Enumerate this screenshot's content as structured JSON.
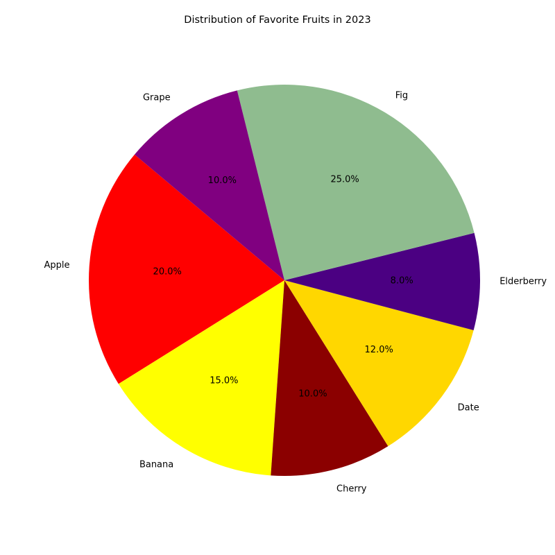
{
  "chart_data": {
    "type": "pie",
    "title": "Distribution of Favorite Fruits in 2023",
    "start_angle_deg": 140,
    "direction": "counterclockwise",
    "slices": [
      {
        "label": "Apple",
        "value": 20.0,
        "pct_label": "20.0%",
        "color": "#ff0000"
      },
      {
        "label": "Banana",
        "value": 15.0,
        "pct_label": "15.0%",
        "color": "#ffff00"
      },
      {
        "label": "Cherry",
        "value": 10.0,
        "pct_label": "10.0%",
        "color": "#8b0000"
      },
      {
        "label": "Date",
        "value": 12.0,
        "pct_label": "12.0%",
        "color": "#ffd700"
      },
      {
        "label": "Elderberry",
        "value": 8.0,
        "pct_label": "8.0%",
        "color": "#4b0082"
      },
      {
        "label": "Fig",
        "value": 25.0,
        "pct_label": "25.0%",
        "color": "#8fbc8f"
      },
      {
        "label": "Grape",
        "value": 10.0,
        "pct_label": "10.0%",
        "color": "#800080"
      }
    ]
  }
}
